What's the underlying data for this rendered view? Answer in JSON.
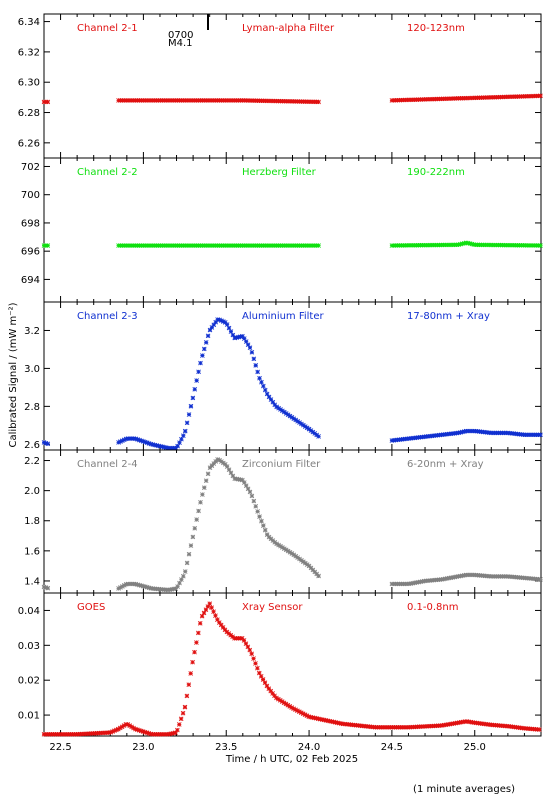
{
  "chart_data": [
    {
      "type": "scatter",
      "annotations": {
        "channel": "Channel 2-1",
        "filter": "Lyman-alpha Filter",
        "band": "120-123nm"
      },
      "color": "#e01010",
      "ylim": [
        6.25,
        6.345
      ],
      "y_ticks": [
        6.26,
        6.28,
        6.3,
        6.32,
        6.34
      ],
      "y_tick_labels": [
        "6.26",
        "6.28",
        "6.30",
        "6.32",
        "6.34"
      ],
      "flare_marker": {
        "x": 23.39,
        "time_label": "0700",
        "class_label": "M4.1"
      },
      "series": [
        {
          "x": [
            22.4,
            22.43
          ],
          "y": [
            6.287,
            6.287
          ]
        },
        {
          "x": [
            22.85,
            23.2,
            23.6,
            24.06
          ],
          "y": [
            6.288,
            6.288,
            6.288,
            6.287
          ]
        },
        {
          "x": [
            24.5,
            24.8,
            25.1,
            25.4
          ],
          "y": [
            6.288,
            6.289,
            6.29,
            6.291
          ]
        }
      ]
    },
    {
      "type": "scatter",
      "annotations": {
        "channel": "Channel 2-2",
        "filter": "Herzberg Filter",
        "band": "190-222nm"
      },
      "color": "#10e010",
      "ylim": [
        692.4,
        702.6
      ],
      "y_ticks": [
        694,
        696,
        698,
        700,
        702
      ],
      "y_tick_labels": [
        "694",
        "696",
        "698",
        "700",
        "702"
      ],
      "series": [
        {
          "x": [
            22.4,
            22.43
          ],
          "y": [
            696.4,
            696.4
          ]
        },
        {
          "x": [
            22.85,
            23.4,
            24.06
          ],
          "y": [
            696.4,
            696.4,
            696.4
          ]
        },
        {
          "x": [
            24.5,
            24.9,
            24.95,
            25.0,
            25.4
          ],
          "y": [
            696.4,
            696.45,
            696.6,
            696.45,
            696.4
          ]
        }
      ]
    },
    {
      "type": "scatter",
      "annotations": {
        "channel": "Channel 2-3",
        "filter": "Aluminium Filter",
        "band": "17-80nm + Xray"
      },
      "color": "#1030d0",
      "ylim": [
        2.57,
        3.35
      ],
      "y_ticks": [
        2.6,
        2.8,
        3.0,
        3.2
      ],
      "y_tick_labels": [
        "2.6",
        "2.8",
        "3.0",
        "3.2"
      ],
      "series": [
        {
          "x": [
            22.4,
            22.43
          ],
          "y": [
            2.61,
            2.6
          ]
        },
        {
          "x": [
            22.85,
            22.9,
            22.95,
            23.05,
            23.15,
            23.2,
            23.25,
            23.3,
            23.35,
            23.4,
            23.45,
            23.5,
            23.55,
            23.6,
            23.65,
            23.7,
            23.75,
            23.8,
            23.9,
            24.0,
            24.06
          ],
          "y": [
            2.61,
            2.63,
            2.63,
            2.6,
            2.58,
            2.58,
            2.66,
            2.85,
            3.05,
            3.2,
            3.26,
            3.24,
            3.16,
            3.17,
            3.1,
            2.95,
            2.86,
            2.8,
            2.74,
            2.68,
            2.64
          ]
        },
        {
          "x": [
            24.5,
            24.6,
            24.7,
            24.8,
            24.9,
            24.95,
            25.0,
            25.1,
            25.2,
            25.3,
            25.4
          ],
          "y": [
            2.62,
            2.63,
            2.64,
            2.65,
            2.66,
            2.67,
            2.67,
            2.66,
            2.66,
            2.65,
            2.65
          ]
        }
      ]
    },
    {
      "type": "scatter",
      "annotations": {
        "channel": "Channel 2-4",
        "filter": "Zirconium Filter",
        "band": "6-20nm + Xray"
      },
      "color": "#808080",
      "ylim": [
        1.32,
        2.27
      ],
      "y_ticks": [
        1.4,
        1.6,
        1.8,
        2.0,
        2.2
      ],
      "y_tick_labels": [
        "1.4",
        "1.6",
        "1.8",
        "2.0",
        "2.2"
      ],
      "series": [
        {
          "x": [
            22.4,
            22.43
          ],
          "y": [
            1.36,
            1.35
          ]
        },
        {
          "x": [
            22.85,
            22.9,
            22.95,
            23.05,
            23.15,
            23.2,
            23.25,
            23.3,
            23.35,
            23.4,
            23.45,
            23.5,
            23.55,
            23.6,
            23.65,
            23.7,
            23.75,
            23.8,
            23.9,
            24.0,
            24.06
          ],
          "y": [
            1.35,
            1.38,
            1.38,
            1.35,
            1.34,
            1.35,
            1.45,
            1.7,
            1.95,
            2.15,
            2.21,
            2.17,
            2.08,
            2.07,
            1.98,
            1.83,
            1.7,
            1.65,
            1.58,
            1.5,
            1.43
          ]
        },
        {
          "x": [
            24.5,
            24.6,
            24.7,
            24.8,
            24.9,
            24.95,
            25.0,
            25.1,
            25.2,
            25.3,
            25.4
          ],
          "y": [
            1.38,
            1.38,
            1.4,
            1.41,
            1.43,
            1.44,
            1.44,
            1.43,
            1.43,
            1.42,
            1.41
          ]
        }
      ]
    },
    {
      "type": "scatter",
      "annotations": {
        "channel": "GOES",
        "filter": "Xray Sensor",
        "band": "0.1-0.8nm"
      },
      "color": "#e01010",
      "ylim": [
        0.004,
        0.045
      ],
      "y_ticks": [
        0.01,
        0.02,
        0.03,
        0.04
      ],
      "y_tick_labels": [
        "0.01",
        "0.02",
        "0.03",
        "0.04"
      ],
      "series": [
        {
          "x": [
            22.4,
            22.6,
            22.8,
            22.85,
            22.9,
            22.95,
            23.05,
            23.15,
            23.2,
            23.25,
            23.3,
            23.35,
            23.4,
            23.45,
            23.5,
            23.55,
            23.6,
            23.65,
            23.7,
            23.75,
            23.8,
            23.9,
            24.0,
            24.2,
            24.4,
            24.6,
            24.8,
            24.9,
            24.95,
            25.0,
            25.1,
            25.2,
            25.3,
            25.4
          ],
          "y": [
            0.0045,
            0.0045,
            0.005,
            0.006,
            0.0075,
            0.006,
            0.0045,
            0.0045,
            0.005,
            0.012,
            0.026,
            0.038,
            0.042,
            0.037,
            0.034,
            0.032,
            0.032,
            0.028,
            0.022,
            0.018,
            0.015,
            0.012,
            0.0095,
            0.0075,
            0.0065,
            0.0065,
            0.007,
            0.0078,
            0.0082,
            0.0078,
            0.0072,
            0.0068,
            0.0062,
            0.0058
          ]
        }
      ]
    }
  ],
  "x_axis": {
    "xlim": [
      22.4,
      25.4
    ],
    "ticks": [
      22.5,
      23.0,
      23.5,
      24.0,
      24.5,
      25.0
    ],
    "tick_labels": [
      "22.5",
      "23.0",
      "23.5",
      "24.0",
      "24.5",
      "25.0"
    ],
    "label": "Time / h UTC, 02 Feb 2025"
  },
  "y_axis_label": "Calibrated Signal / (mW m⁻²)",
  "footnote": "(1 minute averages)"
}
